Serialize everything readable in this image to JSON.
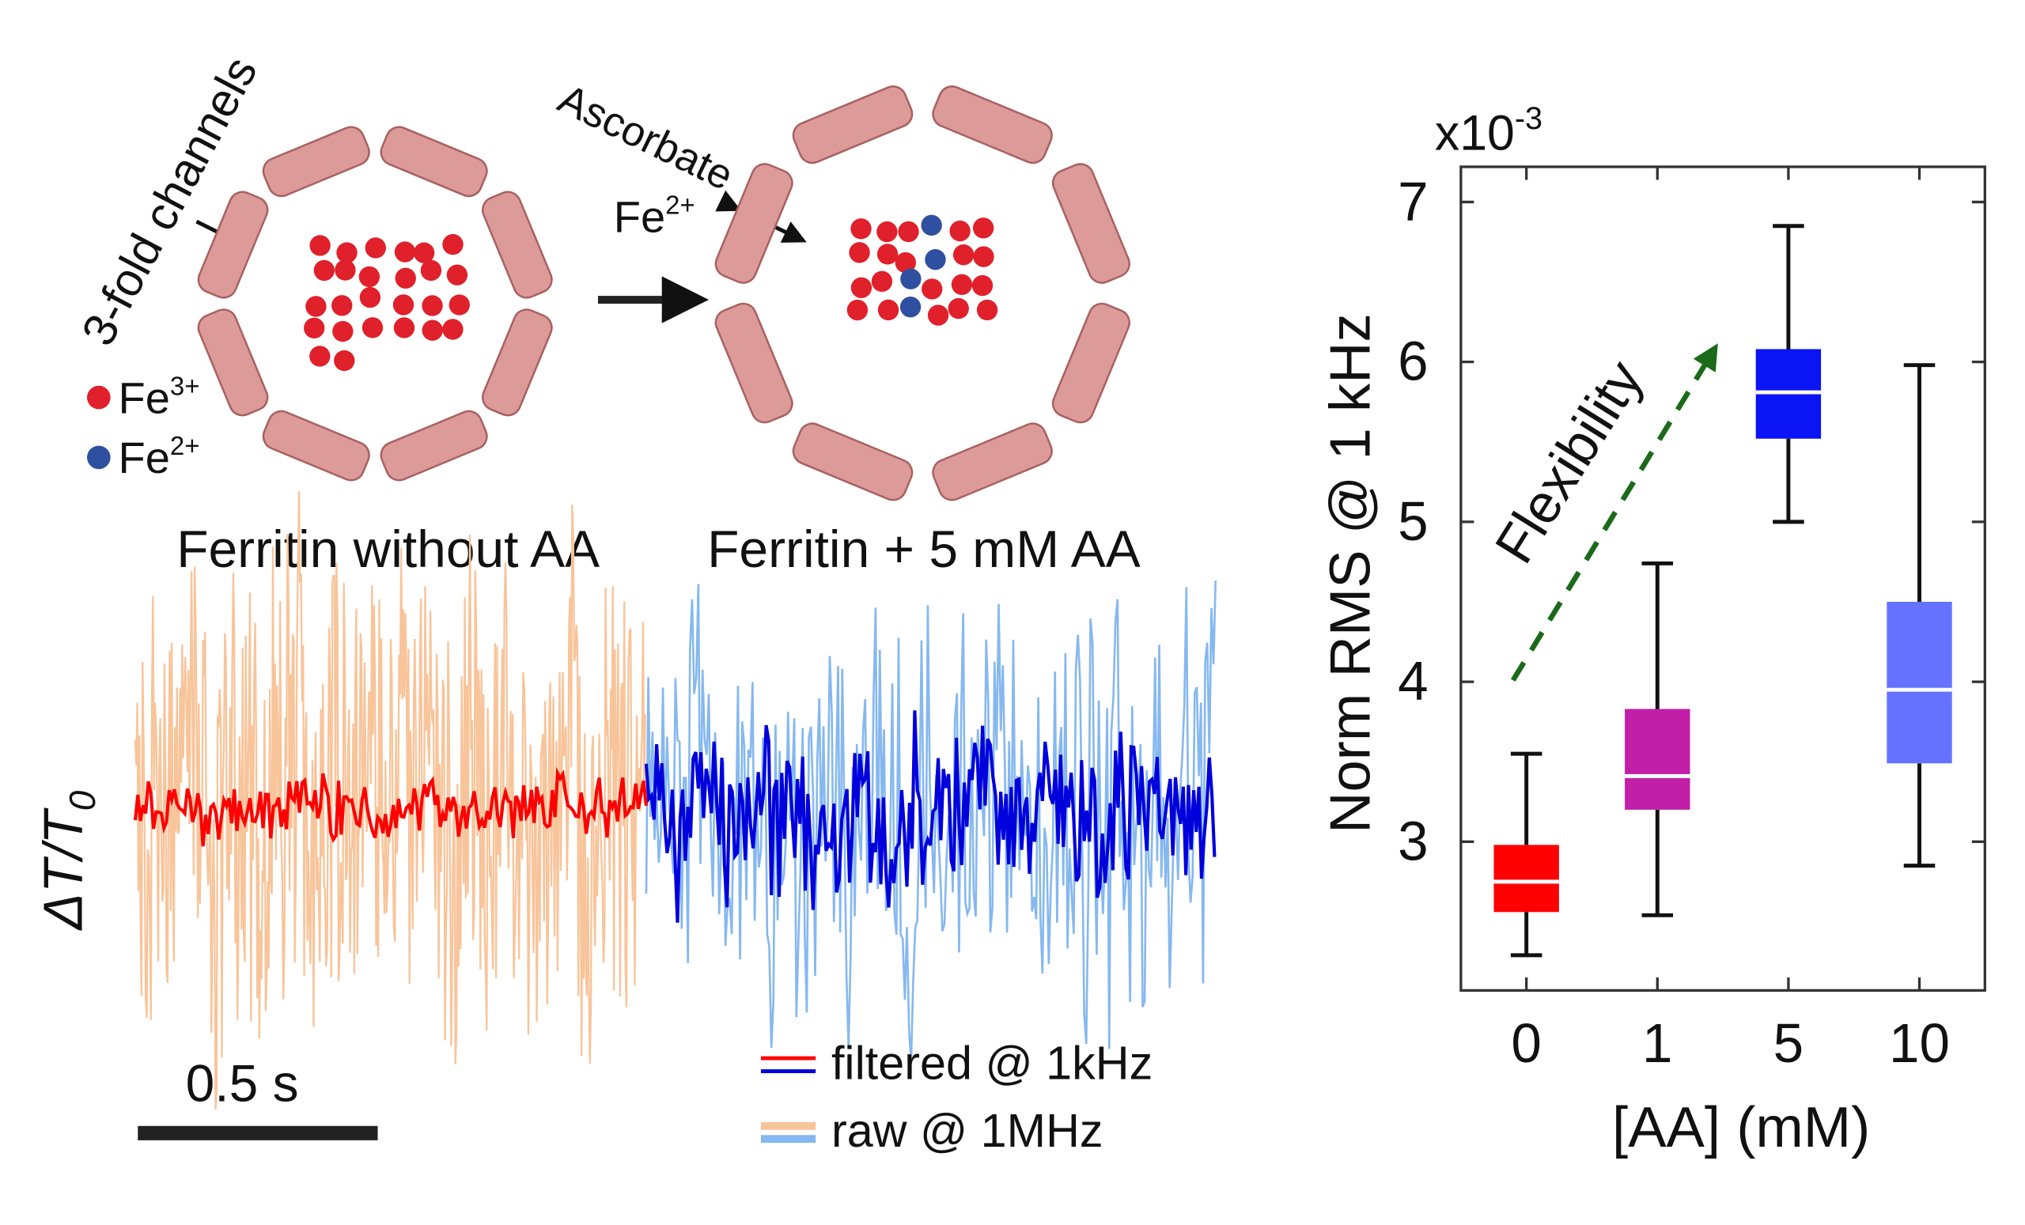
{
  "diagram": {
    "channel_label": "3-fold channels",
    "ascorbate": "Ascorbate",
    "exchange_ion": {
      "base": "Fe",
      "charge": "2+"
    },
    "legend": [
      {
        "base": "Fe",
        "charge": "3+",
        "color": "#e0202a"
      },
      {
        "base": "Fe",
        "charge": "2+",
        "color": "#2f4fa0"
      }
    ]
  },
  "trace": {
    "labels": [
      "Ferritin without AA",
      "Ferritin + 5 mM AA"
    ],
    "label_colors": [
      "#ee1111",
      "#1111dd"
    ],
    "ylabel": {
      "symbol": "ΔT/T",
      "subscript": "0"
    },
    "scale_bar": "0.5 s",
    "legend": [
      "filtered @ 1kHz",
      "raw @ 1MHz"
    ],
    "filtered_colors": [
      "#ff0000",
      "#0000dd"
    ],
    "raw_colors": [
      "#f8c49a",
      "#86b8f0"
    ]
  },
  "chart_data": {
    "type": "box",
    "multiplier": {
      "base": "x10",
      "exponent": "-3"
    },
    "xlabel": "[AA] (mM)",
    "ylabel": "Norm RMS @ 1 kHz",
    "categories": [
      "0",
      "1",
      "5",
      "10"
    ],
    "colors": [
      "#ff0000",
      "#c21fa8",
      "#0a14f5",
      "#6472ff"
    ],
    "whisker_low": [
      2.29,
      2.54,
      5.0,
      2.85
    ],
    "q1": [
      2.56,
      3.2,
      5.52,
      3.49
    ],
    "median": [
      2.75,
      3.41,
      5.81,
      3.95
    ],
    "q3": [
      2.98,
      3.83,
      6.08,
      4.5
    ],
    "whisker_high": [
      3.55,
      4.74,
      6.85,
      5.98
    ],
    "ylim": [
      2.07,
      7.22
    ],
    "yticks": [
      3,
      4,
      5,
      6,
      7
    ],
    "annotation": "Flexibility",
    "annotation_color": "#1a6a1a"
  }
}
